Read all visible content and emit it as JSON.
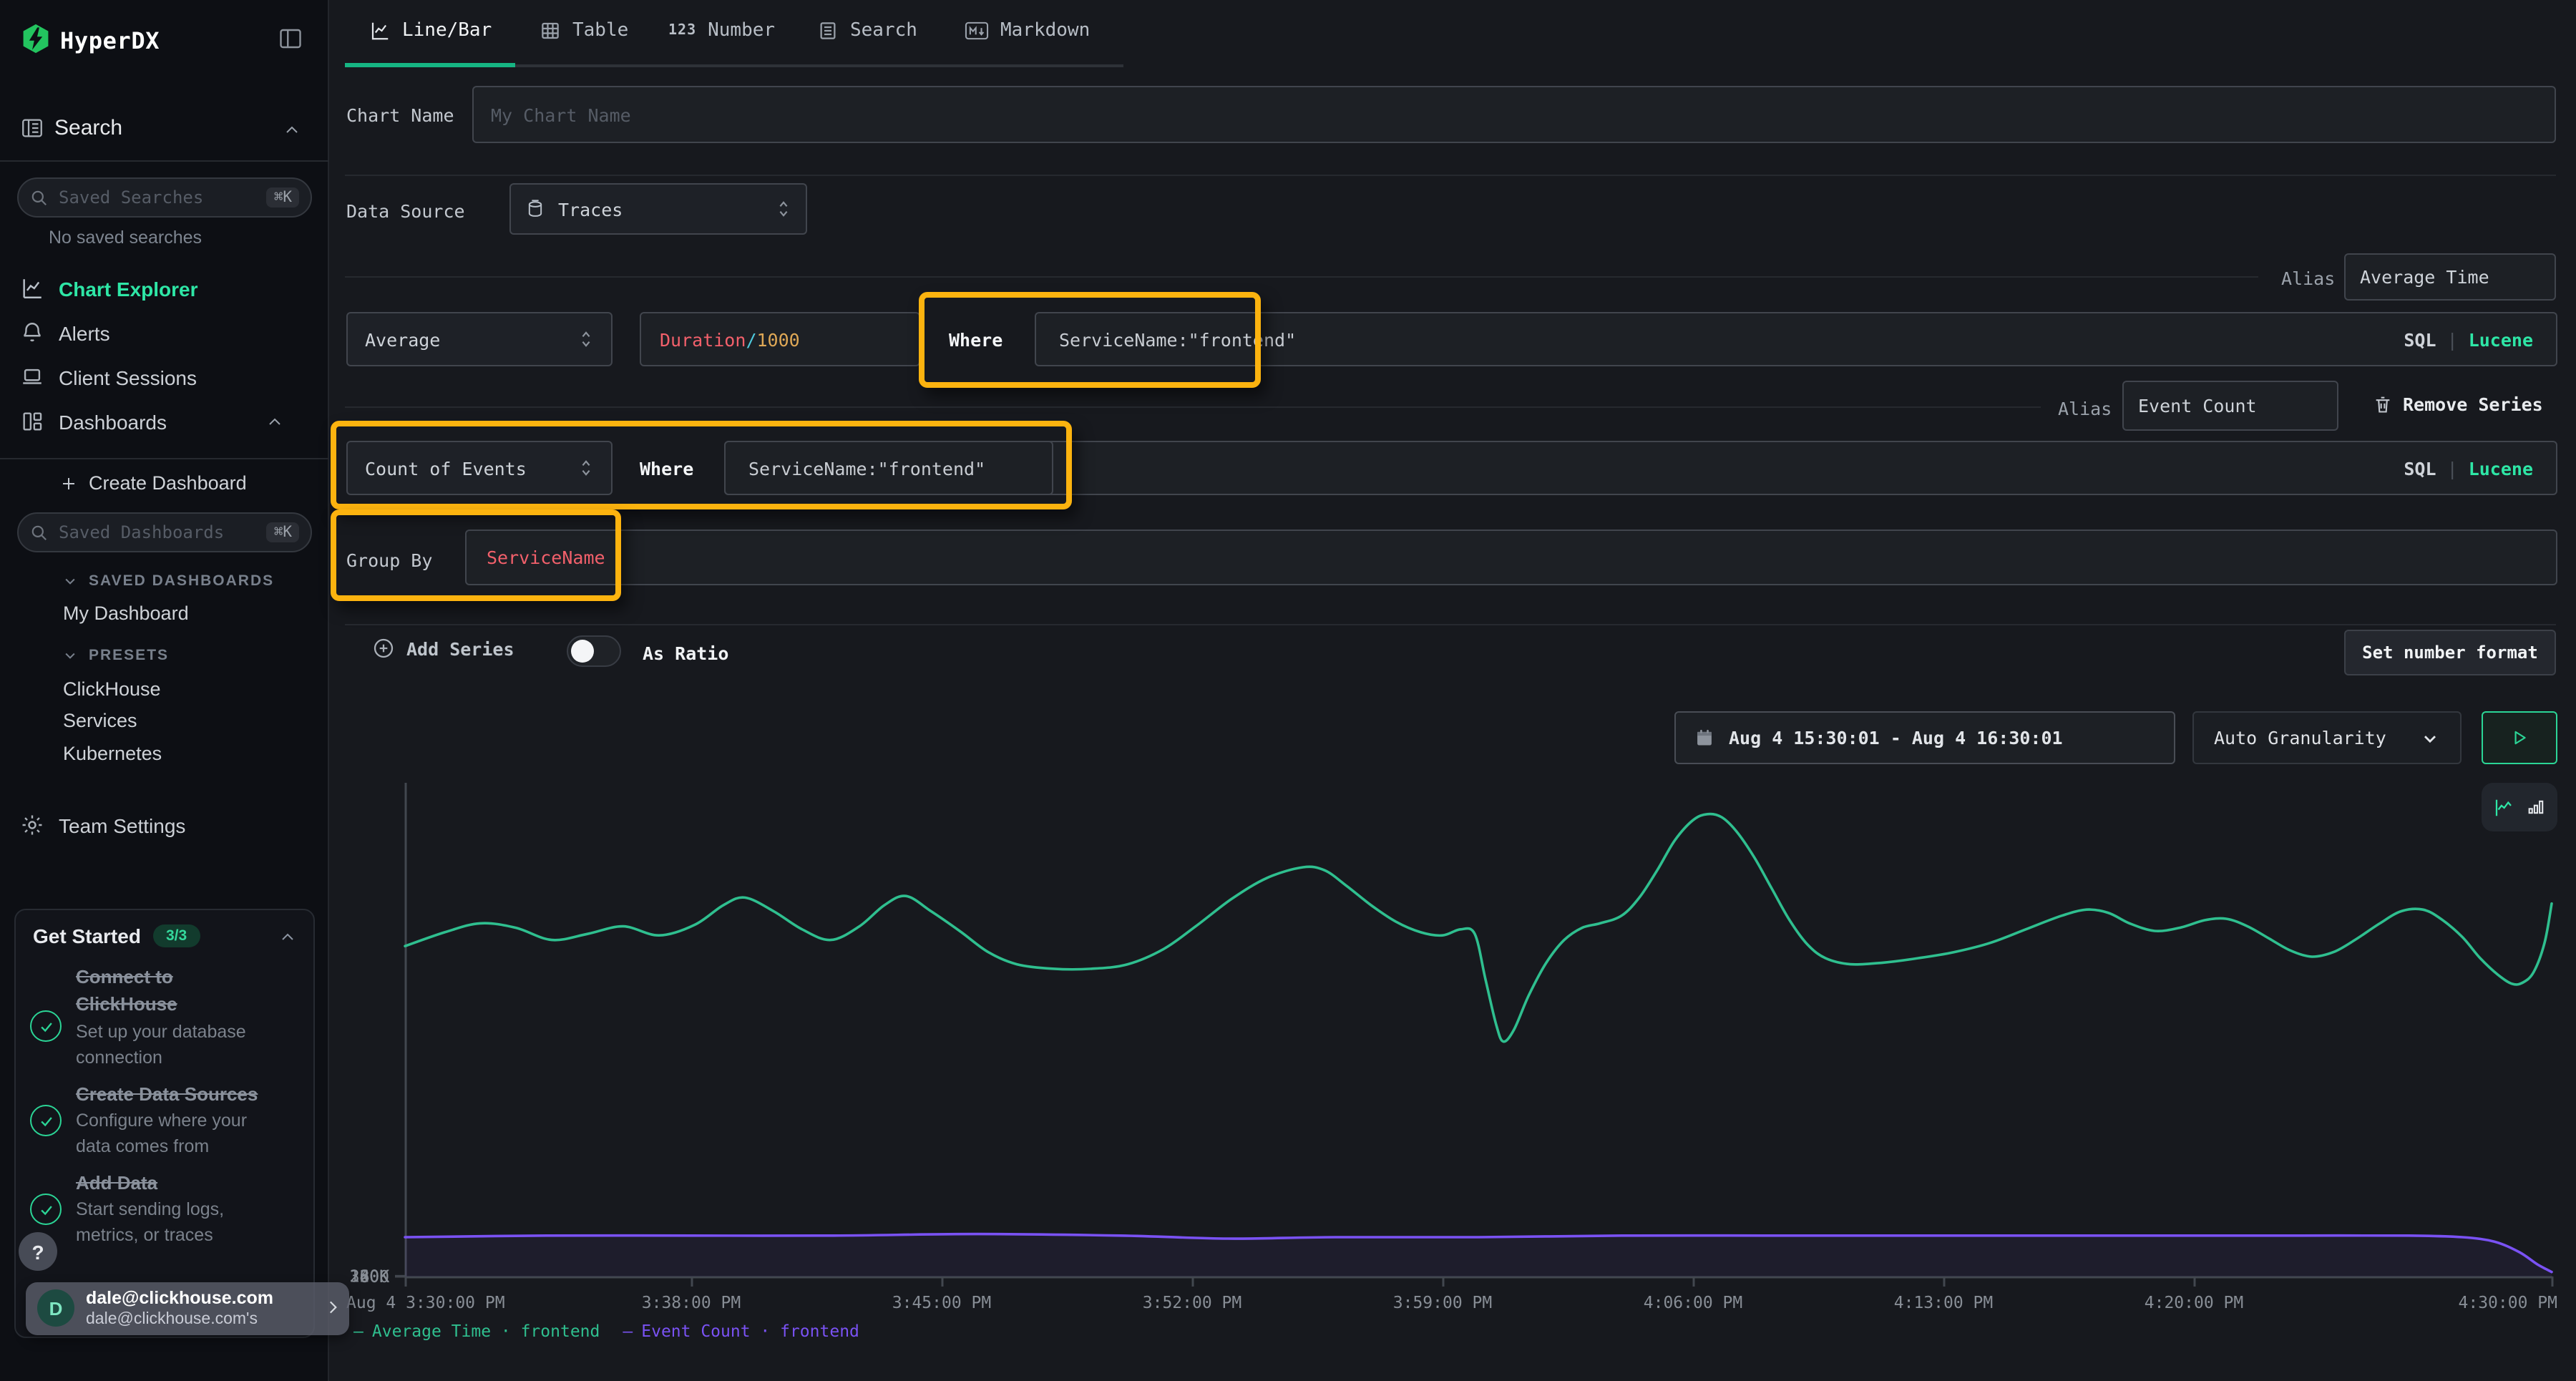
{
  "brand": "HyperDX",
  "sidebar": {
    "search_section": "Search",
    "saved_searches_placeholder": "Saved Searches",
    "kbd": "⌘K",
    "no_saved": "No saved searches",
    "nav": {
      "chart_explorer": "Chart Explorer",
      "alerts": "Alerts",
      "client_sessions": "Client Sessions",
      "dashboards": "Dashboards"
    },
    "create_dashboard": "Create Dashboard",
    "saved_dashboards_placeholder": "Saved Dashboards",
    "sections": {
      "saved_dashboards": "SAVED DASHBOARDS",
      "presets": "PRESETS"
    },
    "my_dashboard": "My Dashboard",
    "presets": [
      "ClickHouse",
      "Services",
      "Kubernetes"
    ],
    "team_settings": "Team Settings",
    "get_started": {
      "title": "Get Started",
      "badge": "3/3",
      "items": [
        {
          "title1": "Connect to",
          "title2": "ClickHouse",
          "desc1": "Set up your database",
          "desc2": "connection"
        },
        {
          "title1": "Create Data Sources",
          "title2": "",
          "desc1": "Configure where your",
          "desc2": "data comes from"
        },
        {
          "title1": "Add Data",
          "title2": "",
          "desc1": "Start sending logs,",
          "desc2": "metrics, or traces"
        }
      ]
    },
    "help": "?",
    "user": {
      "initial": "D",
      "email": "dale@clickhouse.com",
      "sub": "dale@clickhouse.com's"
    }
  },
  "tabs": [
    "Line/Bar",
    "Table",
    "Number",
    "Search",
    "Markdown"
  ],
  "tab_number_icon": "123",
  "markdown_icon_text": "M↓",
  "form": {
    "chart_name_label": "Chart Name",
    "chart_name_placeholder": "My Chart Name",
    "data_source_label": "Data Source",
    "data_source_value": "Traces",
    "alias_label": "Alias",
    "series": [
      {
        "aggregation": "Average",
        "field": "Duration",
        "op": "/",
        "arg": "1000",
        "where_label": "Where",
        "where": "ServiceName:\"frontend\"",
        "alias": "Average Time",
        "sql": "SQL",
        "sep": "|",
        "lucene": "Lucene"
      },
      {
        "aggregation": "Count of Events",
        "where_label": "Where",
        "where": "ServiceName:\"frontend\"",
        "alias": "Event Count",
        "sql": "SQL",
        "sep": "|",
        "lucene": "Lucene",
        "remove": "Remove Series"
      }
    ],
    "group_by_label": "Group By",
    "group_by_value": "ServiceName",
    "add_series": "Add Series",
    "as_ratio": "As Ratio",
    "set_number_format": "Set number format"
  },
  "controls": {
    "date_range": "Aug 4 15:30:01 - Aug 4 16:30:01",
    "granularity": "Auto Granularity"
  },
  "colors": {
    "accent_green": "#2ee6a6",
    "tab_underline": "#16b583",
    "annotation_yellow": "#fcb30f",
    "expr_field_red": "#f2606b",
    "expr_op_cyan": "#4ec9dd",
    "expr_arg_gold": "#dfa856",
    "line_green": "#2fbf8f",
    "line_purple": "#7a52f4"
  },
  "chart_data": {
    "type": "line",
    "title": "",
    "xlabel": "",
    "ylabel": "",
    "ylim": [
      0,
      320000
    ],
    "grid": false,
    "legend_position": "bottom-left",
    "x_unit": "minutes after Aug 4 3:30:00 PM",
    "x_ticks": [
      {
        "t": 0,
        "label": "Aug 4 3:30:00 PM"
      },
      {
        "t": 8,
        "label": "3:38:00 PM"
      },
      {
        "t": 15,
        "label": "3:45:00 PM"
      },
      {
        "t": 22,
        "label": "3:52:00 PM"
      },
      {
        "t": 29,
        "label": "3:59:00 PM"
      },
      {
        "t": 36,
        "label": "4:06:00 PM"
      },
      {
        "t": 43,
        "label": "4:13:00 PM"
      },
      {
        "t": 50,
        "label": "4:20:00 PM"
      },
      {
        "t": 60,
        "label": "4:30:00 PM"
      }
    ],
    "y_ticks": [
      {
        "v": 0,
        "label": "0"
      },
      {
        "v": 80,
        "label": "80K"
      },
      {
        "v": 160,
        "label": "160K"
      },
      {
        "v": 240,
        "label": "240K"
      },
      {
        "v": 320,
        "label": "320K"
      }
    ],
    "series": [
      {
        "name": "Average Time · frontend",
        "color": "#2fbf8f",
        "unit": "K",
        "points": [
          [
            0,
            218
          ],
          [
            1.1,
            227
          ],
          [
            2.1,
            233
          ],
          [
            3.1,
            230
          ],
          [
            4.1,
            222
          ],
          [
            5.1,
            226
          ],
          [
            6.1,
            231
          ],
          [
            7.1,
            225
          ],
          [
            8.1,
            232
          ],
          [
            8.9,
            245
          ],
          [
            9.5,
            250
          ],
          [
            10.3,
            241
          ],
          [
            11.1,
            229
          ],
          [
            11.9,
            222
          ],
          [
            12.7,
            231
          ],
          [
            13.4,
            245
          ],
          [
            14,
            251
          ],
          [
            14.7,
            241
          ],
          [
            15.5,
            228
          ],
          [
            16.3,
            214
          ],
          [
            17.1,
            206
          ],
          [
            18.1,
            203
          ],
          [
            19.2,
            203
          ],
          [
            20.2,
            206
          ],
          [
            21.2,
            216
          ],
          [
            22.1,
            231
          ],
          [
            23.1,
            249
          ],
          [
            24.1,
            263
          ],
          [
            25.1,
            270
          ],
          [
            25.7,
            268
          ],
          [
            26.3,
            258
          ],
          [
            27,
            245
          ],
          [
            27.7,
            234
          ],
          [
            28.4,
            227
          ],
          [
            29,
            225
          ],
          [
            29.5,
            229
          ],
          [
            29.9,
            226
          ],
          [
            30.2,
            196
          ],
          [
            30.5,
            166
          ],
          [
            30.7,
            155
          ],
          [
            31,
            163
          ],
          [
            31.4,
            185
          ],
          [
            31.9,
            207
          ],
          [
            32.4,
            222
          ],
          [
            32.9,
            230
          ],
          [
            33.4,
            233
          ],
          [
            34,
            238
          ],
          [
            34.5,
            250
          ],
          [
            35,
            268
          ],
          [
            35.5,
            288
          ],
          [
            36,
            301
          ],
          [
            36.4,
            305
          ],
          [
            36.8,
            303
          ],
          [
            37.2,
            294
          ],
          [
            37.7,
            277
          ],
          [
            38.2,
            256
          ],
          [
            38.7,
            235
          ],
          [
            39.2,
            219
          ],
          [
            39.7,
            210
          ],
          [
            40.4,
            206
          ],
          [
            41.3,
            207
          ],
          [
            42.3,
            210
          ],
          [
            43.3,
            214
          ],
          [
            44.3,
            220
          ],
          [
            45.3,
            229
          ],
          [
            46.3,
            238
          ],
          [
            47,
            242
          ],
          [
            47.6,
            240
          ],
          [
            48.2,
            233
          ],
          [
            48.9,
            228
          ],
          [
            49.6,
            230
          ],
          [
            50.3,
            235
          ],
          [
            50.9,
            236
          ],
          [
            51.5,
            231
          ],
          [
            52.1,
            223
          ],
          [
            52.7,
            215
          ],
          [
            53.3,
            211
          ],
          [
            53.9,
            214
          ],
          [
            54.5,
            222
          ],
          [
            55.2,
            233
          ],
          [
            55.8,
            241
          ],
          [
            56.4,
            242
          ],
          [
            56.9,
            236
          ],
          [
            57.5,
            224
          ],
          [
            58,
            210
          ],
          [
            58.5,
            199
          ],
          [
            58.9,
            193
          ],
          [
            59.2,
            194
          ],
          [
            59.5,
            201
          ],
          [
            59.8,
            220
          ],
          [
            60,
            246
          ]
        ]
      },
      {
        "name": "Event Count · frontend",
        "color": "#7a52f4",
        "unit": "K",
        "points": [
          [
            0,
            26
          ],
          [
            4,
            27
          ],
          [
            8,
            27
          ],
          [
            12,
            27
          ],
          [
            16,
            28
          ],
          [
            20,
            27
          ],
          [
            23,
            25
          ],
          [
            26,
            26
          ],
          [
            30,
            26
          ],
          [
            34,
            27
          ],
          [
            38,
            27
          ],
          [
            42,
            27
          ],
          [
            46,
            27
          ],
          [
            50,
            27
          ],
          [
            53,
            27
          ],
          [
            56,
            27
          ],
          [
            57.5,
            26
          ],
          [
            58.4,
            23
          ],
          [
            59.1,
            16
          ],
          [
            59.6,
            8
          ],
          [
            60,
            3
          ]
        ]
      }
    ]
  },
  "legend": [
    {
      "dash": "—",
      "label": "Average Time · frontend"
    },
    {
      "dash": "—",
      "label": "Event Count · frontend"
    }
  ]
}
